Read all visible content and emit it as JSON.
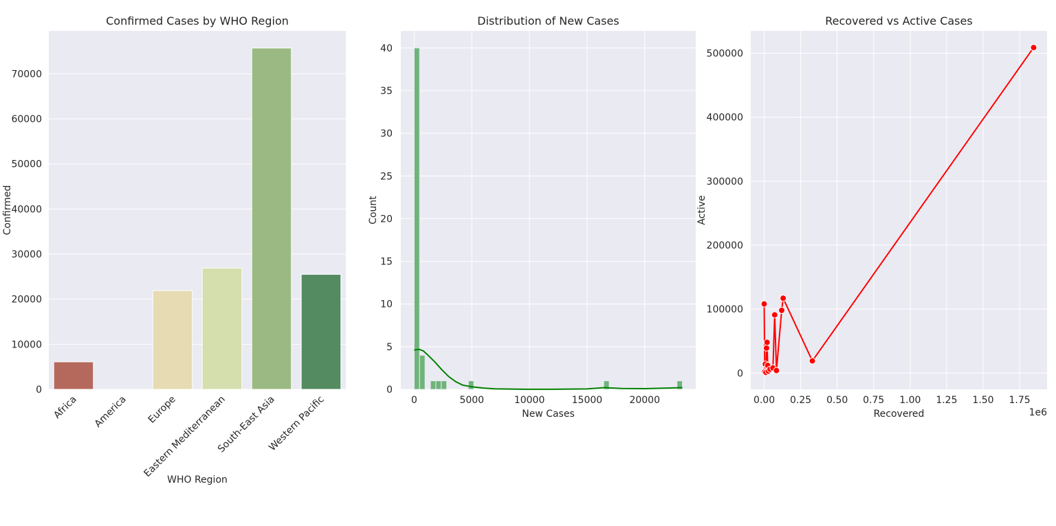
{
  "chart_data": [
    {
      "type": "bar",
      "title": "Confirmed Cases by WHO Region",
      "xlabel": "WHO Region",
      "ylabel": "Confirmed",
      "categories": [
        "Africa",
        "America",
        "Europe",
        "Eastern Mediterranean",
        "South-East Asia",
        "Western Pacific"
      ],
      "values": [
        6100,
        0,
        21900,
        26900,
        75700,
        25500
      ],
      "colors": [
        "#b5695c",
        "#cc9a6e",
        "#e6dbb2",
        "#d5dead",
        "#9bba83",
        "#548b61"
      ],
      "ylim": [
        0,
        79500
      ],
      "yticks": [
        0,
        10000,
        20000,
        30000,
        40000,
        50000,
        60000,
        70000
      ],
      "yticklabels": [
        "0",
        "10000",
        "20000",
        "30000",
        "40000",
        "50000",
        "60000",
        "70000"
      ],
      "grid": true
    },
    {
      "type": "histogram",
      "title": "Distribution of New Cases",
      "xlabel": "New Cases",
      "ylabel": "Count",
      "bins": [
        {
          "x0": 0,
          "x1": 470,
          "count": 40
        },
        {
          "x0": 470,
          "x1": 940,
          "count": 4
        },
        {
          "x0": 1410,
          "x1": 1880,
          "count": 1
        },
        {
          "x0": 1880,
          "x1": 2350,
          "count": 1
        },
        {
          "x0": 2350,
          "x1": 2820,
          "count": 1
        },
        {
          "x0": 4700,
          "x1": 5170,
          "count": 1
        },
        {
          "x0": 16450,
          "x1": 16920,
          "count": 1
        },
        {
          "x0": 22800,
          "x1": 23270,
          "count": 1
        }
      ],
      "kde": [
        [
          0,
          4.6
        ],
        [
          400,
          4.7
        ],
        [
          800,
          4.5
        ],
        [
          1200,
          4.0
        ],
        [
          1800,
          3.2
        ],
        [
          2400,
          2.3
        ],
        [
          3000,
          1.5
        ],
        [
          3600,
          0.9
        ],
        [
          4200,
          0.5
        ],
        [
          5000,
          0.3
        ],
        [
          6000,
          0.15
        ],
        [
          7000,
          0.06
        ],
        [
          9000,
          0.02
        ],
        [
          12000,
          0.01
        ],
        [
          15000,
          0.05
        ],
        [
          16500,
          0.2
        ],
        [
          18000,
          0.1
        ],
        [
          20000,
          0.08
        ],
        [
          22000,
          0.15
        ],
        [
          23270,
          0.2
        ]
      ],
      "bar_color": "#6fb47a",
      "kde_color": "#008000",
      "xlim": [
        -1160,
        24430
      ],
      "ylim": [
        0,
        42
      ],
      "xticks": [
        0,
        5000,
        10000,
        15000,
        20000
      ],
      "xticklabels": [
        "0",
        "5000",
        "10000",
        "15000",
        "20000"
      ],
      "yticks": [
        0,
        5,
        10,
        15,
        20,
        25,
        30,
        35,
        40
      ],
      "yticklabels": [
        "0",
        "5",
        "10",
        "15",
        "20",
        "25",
        "30",
        "35",
        "40"
      ],
      "grid": true
    },
    {
      "type": "line",
      "title": "Recovered vs Active Cases",
      "xlabel": "Recovered",
      "ylabel": "Active",
      "x_offset_label": "1e6",
      "x": [
        0,
        0.004,
        0.008,
        0.012,
        0.016,
        0.02,
        0.024,
        0.028,
        0.04,
        0.06,
        0.072,
        0.084,
        0.12,
        0.13,
        0.33,
        1.846
      ],
      "y": [
        108000,
        2000,
        14000,
        1000,
        39000,
        48000,
        12000,
        3000,
        6000,
        8000,
        91000,
        4000,
        98000,
        117000,
        19000,
        509000
      ],
      "color": "#ff0000",
      "marker": "o",
      "xlim": [
        -0.092,
        1.938
      ],
      "ylim": [
        -25500,
        535000
      ],
      "xticks": [
        0,
        0.25,
        0.5,
        0.75,
        1.0,
        1.25,
        1.5,
        1.75
      ],
      "xticklabels": [
        "0.00",
        "0.25",
        "0.50",
        "0.75",
        "1.00",
        "1.25",
        "1.50",
        "1.75"
      ],
      "yticks": [
        0,
        100000,
        200000,
        300000,
        400000,
        500000
      ],
      "yticklabels": [
        "0",
        "100000",
        "200000",
        "300000",
        "400000",
        "500000"
      ],
      "grid": true
    }
  ]
}
